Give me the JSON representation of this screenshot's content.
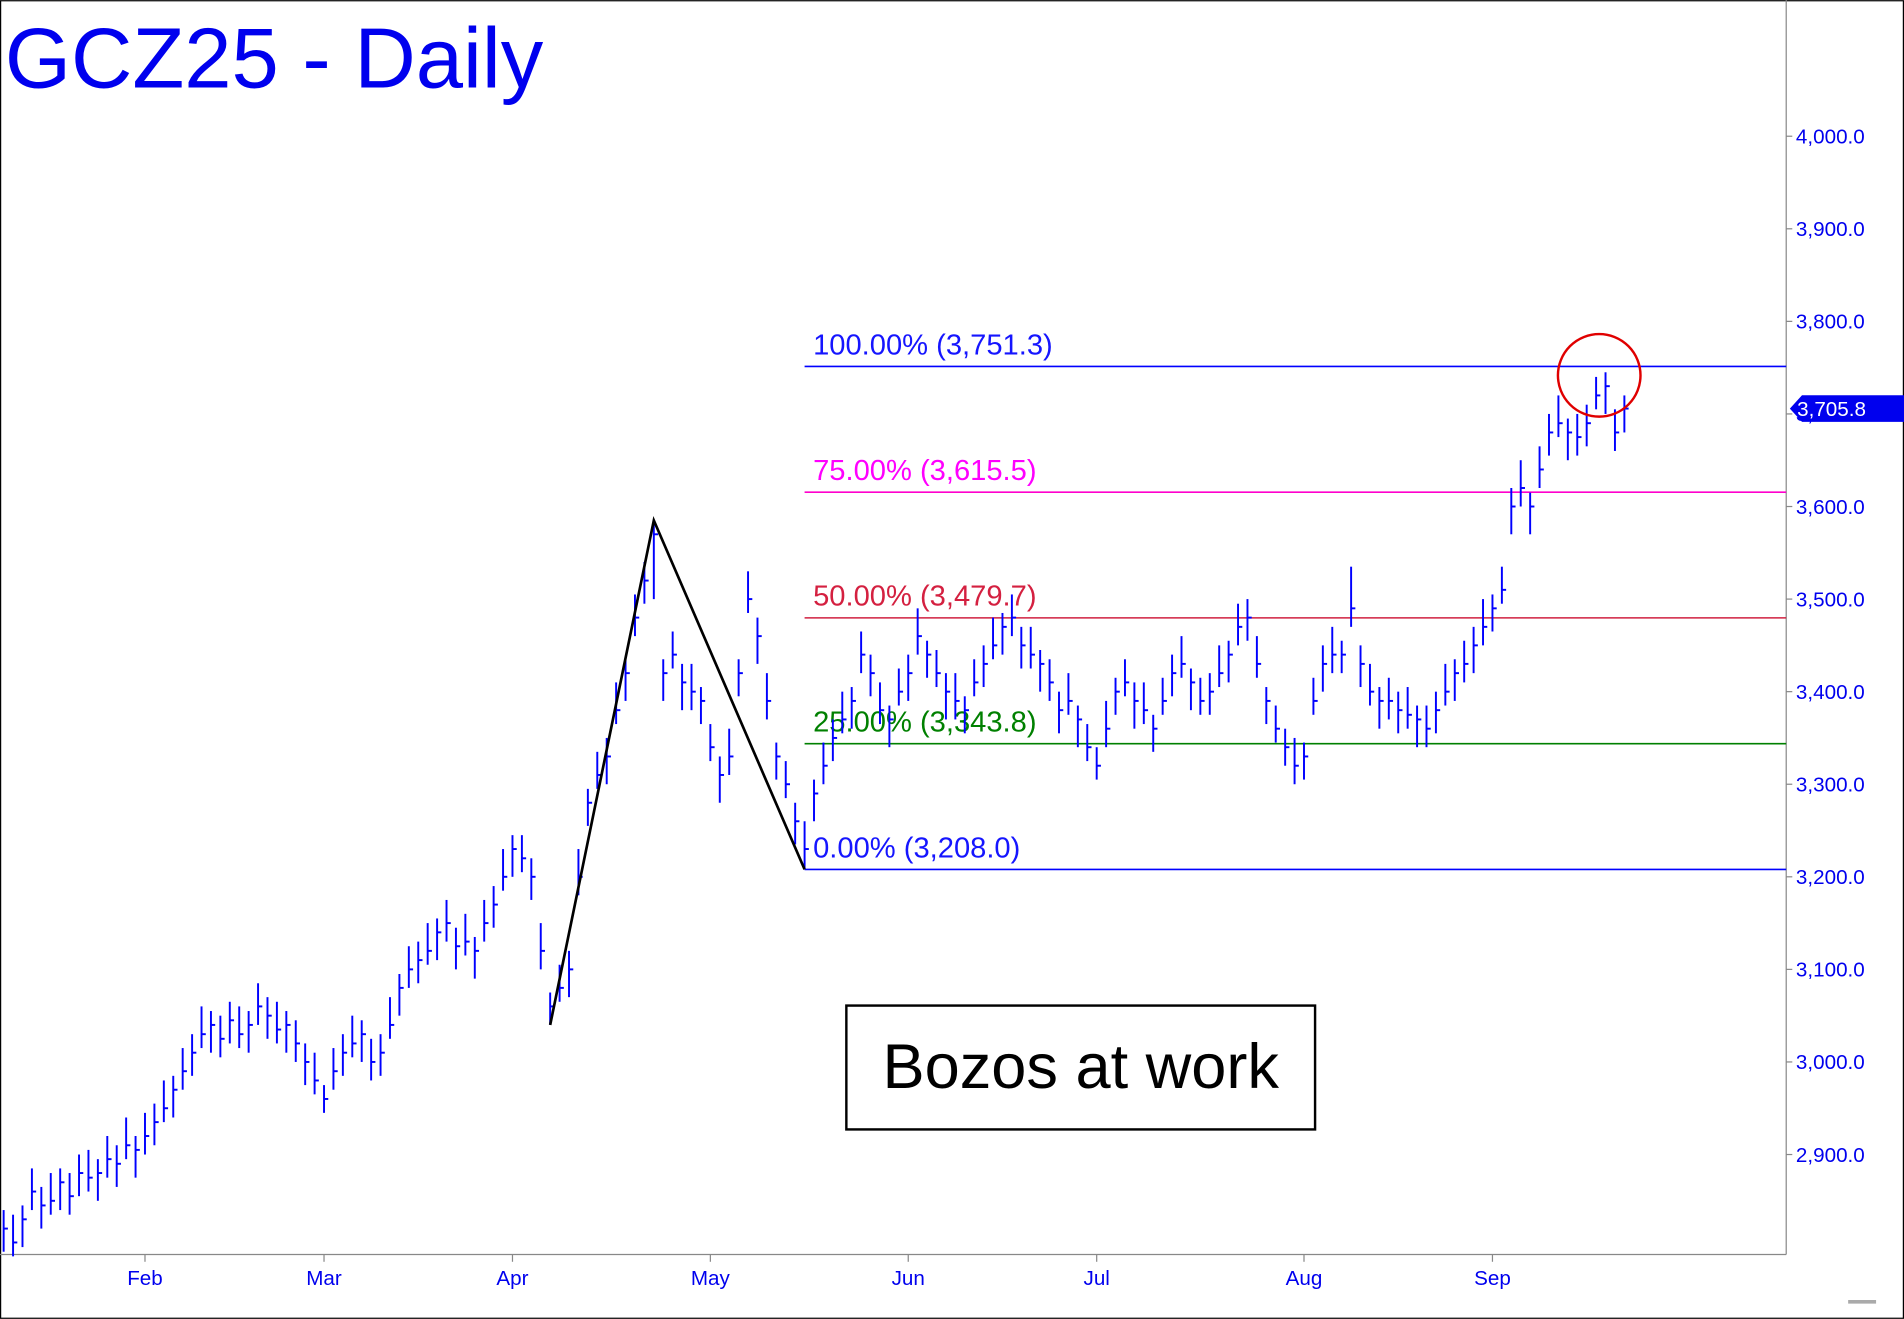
{
  "chart_data": {
    "type": "ohlc",
    "title": "GCZ25 - Daily",
    "color": "#0000ff",
    "categories": [
      null,
      null,
      null,
      null,
      null,
      null,
      null,
      null,
      null,
      null,
      null,
      null,
      null,
      null,
      null,
      "Feb",
      null,
      null,
      null,
      null,
      null,
      null,
      null,
      null,
      null,
      null,
      null,
      null,
      null,
      null,
      null,
      null,
      null,
      null,
      "Mar",
      null,
      null,
      null,
      null,
      null,
      null,
      null,
      null,
      null,
      null,
      null,
      null,
      null,
      null,
      null,
      null,
      null,
      null,
      null,
      "Apr",
      null,
      null,
      null,
      null,
      null,
      null,
      null,
      null,
      null,
      null,
      null,
      null,
      null,
      null,
      null,
      null,
      null,
      null,
      null,
      null,
      "May",
      null,
      null,
      null,
      null,
      null,
      null,
      null,
      null,
      null,
      null,
      null,
      null,
      null,
      null,
      null,
      null,
      null,
      null,
      null,
      null,
      "Jun",
      null,
      null,
      null,
      null,
      null,
      null,
      null,
      null,
      null,
      null,
      null,
      null,
      null,
      null,
      null,
      null,
      null,
      null,
      null,
      "Jul",
      null,
      null,
      null,
      null,
      null,
      null,
      null,
      null,
      null,
      null,
      null,
      null,
      null,
      null,
      null,
      null,
      null,
      null,
      null,
      null,
      null,
      "Aug",
      null,
      null,
      null,
      null,
      null,
      null,
      null,
      null,
      null,
      null,
      null,
      null,
      null,
      null,
      null,
      null,
      null,
      null,
      null,
      "Sep",
      null,
      null,
      null,
      null,
      null,
      null,
      null,
      null,
      null,
      null,
      null,
      null,
      null,
      null
    ],
    "high": [
      2840,
      2835,
      2845,
      2885,
      2865,
      2880,
      2885,
      2880,
      2900,
      2905,
      2895,
      2920,
      2910,
      2940,
      2920,
      2945,
      2955,
      2980,
      2985,
      3015,
      3030,
      3060,
      3055,
      3050,
      3065,
      3060,
      3055,
      3085,
      3070,
      3065,
      3055,
      3045,
      3020,
      3010,
      2975,
      3015,
      3030,
      3050,
      3045,
      3025,
      3030,
      3070,
      3095,
      3125,
      3130,
      3150,
      3155,
      3175,
      3145,
      3160,
      3135,
      3175,
      3190,
      3230,
      3245,
      3245,
      3220,
      3150,
      3075,
      3105,
      3120,
      3230,
      3295,
      3335,
      3350,
      3410,
      3435,
      3505,
      3540,
      3585,
      3435,
      3465,
      3430,
      3430,
      3405,
      3365,
      3330,
      3360,
      3435,
      3530,
      3480,
      3420,
      3345,
      3325,
      3280,
      3260,
      3305,
      3345,
      3370,
      3400,
      3405,
      3465,
      3440,
      3410,
      3385,
      3425,
      3440,
      3490,
      3455,
      3445,
      3420,
      3420,
      3395,
      3435,
      3450,
      3480,
      3485,
      3505,
      3470,
      3470,
      3445,
      3435,
      3400,
      3420,
      3385,
      3365,
      3340,
      3390,
      3415,
      3435,
      3410,
      3410,
      3375,
      3415,
      3440,
      3460,
      3425,
      3415,
      3420,
      3450,
      3455,
      3495,
      3500,
      3460,
      3405,
      3385,
      3360,
      3350,
      3345,
      3415,
      3450,
      3470,
      3455,
      3535,
      3450,
      3430,
      3405,
      3415,
      3400,
      3405,
      3385,
      3385,
      3400,
      3430,
      3435,
      3455,
      3470,
      3500,
      3505,
      3535,
      3620,
      3650,
      3615,
      3665,
      3700,
      3720,
      3695,
      3700,
      3710,
      3740,
      3745,
      3705,
      3720
    ],
    "low": [
      2795,
      2790,
      2800,
      2840,
      2820,
      2835,
      2840,
      2835,
      2855,
      2860,
      2850,
      2875,
      2865,
      2895,
      2875,
      2900,
      2910,
      2935,
      2940,
      2970,
      2985,
      3015,
      3010,
      3005,
      3020,
      3015,
      3010,
      3040,
      3025,
      3020,
      3010,
      3000,
      2975,
      2965,
      2945,
      2970,
      2985,
      3005,
      3000,
      2980,
      2985,
      3025,
      3050,
      3080,
      3085,
      3105,
      3110,
      3130,
      3100,
      3115,
      3090,
      3130,
      3145,
      3185,
      3200,
      3205,
      3175,
      3100,
      3040,
      3065,
      3070,
      3180,
      3255,
      3295,
      3300,
      3365,
      3390,
      3460,
      3495,
      3500,
      3390,
      3425,
      3380,
      3380,
      3365,
      3325,
      3280,
      3310,
      3395,
      3485,
      3430,
      3370,
      3305,
      3285,
      3235,
      3208,
      3260,
      3300,
      3325,
      3355,
      3360,
      3420,
      3395,
      3365,
      3340,
      3385,
      3390,
      3440,
      3415,
      3405,
      3370,
      3370,
      3355,
      3395,
      3405,
      3435,
      3440,
      3460,
      3425,
      3425,
      3400,
      3390,
      3355,
      3375,
      3340,
      3325,
      3305,
      3340,
      3375,
      3395,
      3360,
      3365,
      3335,
      3375,
      3395,
      3415,
      3380,
      3375,
      3375,
      3405,
      3410,
      3450,
      3455,
      3415,
      3365,
      3345,
      3320,
      3300,
      3305,
      3375,
      3400,
      3420,
      3420,
      3470,
      3405,
      3385,
      3360,
      3370,
      3355,
      3360,
      3340,
      3340,
      3355,
      3385,
      3390,
      3410,
      3420,
      3450,
      3465,
      3495,
      3570,
      3600,
      3570,
      3620,
      3655,
      3675,
      3650,
      3655,
      3665,
      3705,
      3700,
      3660,
      3680
    ],
    "close": [
      2820,
      2805,
      2830,
      2860,
      2845,
      2850,
      2870,
      2855,
      2880,
      2875,
      2880,
      2895,
      2890,
      2910,
      2905,
      2920,
      2935,
      2950,
      2970,
      2990,
      3010,
      3030,
      3040,
      3025,
      3045,
      3030,
      3040,
      3060,
      3050,
      3035,
      3040,
      3020,
      3000,
      2980,
      2960,
      2990,
      3010,
      3020,
      3030,
      3000,
      3010,
      3040,
      3080,
      3100,
      3110,
      3120,
      3140,
      3150,
      3125,
      3130,
      3120,
      3150,
      3170,
      3200,
      3230,
      3220,
      3200,
      3120,
      3060,
      3080,
      3100,
      3200,
      3280,
      3310,
      3330,
      3380,
      3420,
      3480,
      3520,
      3570,
      3420,
      3440,
      3410,
      3400,
      3390,
      3340,
      3310,
      3330,
      3420,
      3500,
      3460,
      3390,
      3330,
      3300,
      3260,
      3230,
      3290,
      3320,
      3350,
      3370,
      3390,
      3440,
      3420,
      3380,
      3370,
      3400,
      3420,
      3460,
      3440,
      3420,
      3400,
      3390,
      3380,
      3410,
      3430,
      3450,
      3470,
      3480,
      3450,
      3440,
      3430,
      3410,
      3380,
      3390,
      3370,
      3340,
      3320,
      3360,
      3400,
      3410,
      3390,
      3380,
      3360,
      3390,
      3420,
      3430,
      3410,
      3390,
      3400,
      3420,
      3440,
      3470,
      3480,
      3430,
      3390,
      3360,
      3340,
      3320,
      3330,
      3390,
      3430,
      3440,
      3440,
      3490,
      3430,
      3400,
      3390,
      3390,
      3380,
      3375,
      3370,
      3360,
      3380,
      3400,
      3420,
      3430,
      3450,
      3470,
      3490,
      3510,
      3600,
      3620,
      3600,
      3640,
      3680,
      3690,
      3680,
      3675,
      3690,
      3720,
      3730,
      3680,
      3705.8
    ],
    "ylim": [
      2792,
      4147
    ],
    "yticks": [
      {
        "value": 2900,
        "label": "2,900.0"
      },
      {
        "value": 3000,
        "label": "3,000.0"
      },
      {
        "value": 3100,
        "label": "3,100.0"
      },
      {
        "value": 3200,
        "label": "3,200.0"
      },
      {
        "value": 3300,
        "label": "3,300.0"
      },
      {
        "value": 3400,
        "label": "3,400.0"
      },
      {
        "value": 3500,
        "label": "3,500.0"
      },
      {
        "value": 3600,
        "label": "3,600.0"
      },
      {
        "value": 3700,
        "label": "3,700.0"
      },
      {
        "value": 3800,
        "label": "3,800.0"
      },
      {
        "value": 3900,
        "label": "3,900.0"
      },
      {
        "value": 4000,
        "label": "4,000.0"
      }
    ],
    "last": {
      "value": 3705.8,
      "label": "3,705.8"
    },
    "fib": [
      {
        "value": 3751.3,
        "label": "100.00% (3,751.3)",
        "color": "#0000ff",
        "text_color": "#1515ff"
      },
      {
        "value": 3615.5,
        "label": "75.00% (3,615.5)",
        "color": "#ff00cc",
        "text_color": "#ff00ff"
      },
      {
        "value": 3479.7,
        "label": "50.00% (3,479.7)",
        "color": "#d02040",
        "text_color": "#d42040"
      },
      {
        "value": 3343.8,
        "label": "25.00% (3,343.8)",
        "color": "#008000",
        "text_color": "#008000"
      },
      {
        "value": 3208.0,
        "label": "0.00% (3,208.0)",
        "color": "#0000ff",
        "text_color": "#1515ff"
      }
    ],
    "zigzag": [
      {
        "index": 58,
        "value": 3040
      },
      {
        "index": 69,
        "value": 3585
      },
      {
        "index": 85,
        "value": 3208
      }
    ],
    "annotation": "Bozos at work"
  }
}
